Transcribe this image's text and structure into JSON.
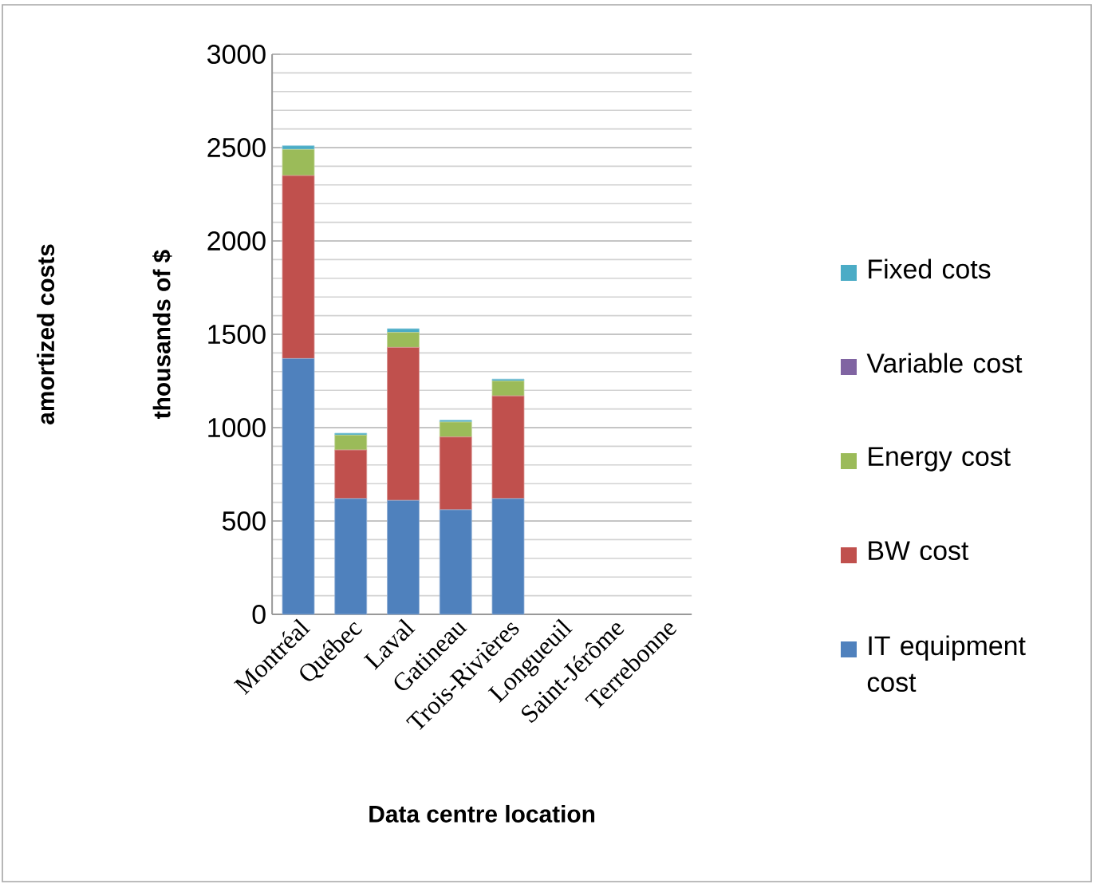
{
  "chart_data": {
    "type": "bar",
    "stacked": true,
    "xlabel": "Data centre location",
    "ylabel": "thousands of $",
    "annotations": [
      "amortized costs"
    ],
    "categories": [
      "Montréal",
      "Québec",
      "Laval",
      "Gatineau",
      "Trois-Rivières",
      "Longueuil",
      "Saint-Jérôme",
      "Terrebonne"
    ],
    "series": [
      {
        "name": "IT equipment cost",
        "color": "#4f81bd",
        "values": [
          1370,
          620,
          610,
          560,
          620,
          null,
          null,
          null
        ]
      },
      {
        "name": "BW cost",
        "color": "#c0504d",
        "values": [
          980,
          260,
          820,
          390,
          550,
          null,
          null,
          null
        ]
      },
      {
        "name": "Energy cost",
        "color": "#9bbb59",
        "values": [
          140,
          80,
          80,
          80,
          80,
          null,
          null,
          null
        ]
      },
      {
        "name": "Variable cost",
        "color": "#8064a2",
        "values": [
          0,
          0,
          0,
          0,
          0,
          null,
          null,
          null
        ]
      },
      {
        "name": "Fixed cots",
        "color": "#4bacc6",
        "values": [
          20,
          10,
          20,
          10,
          10,
          null,
          null,
          null
        ]
      }
    ],
    "ylim": [
      0,
      3000
    ],
    "yticks": [
      0,
      500,
      1000,
      1500,
      2000,
      2500,
      3000
    ],
    "grid": true,
    "legend": "right"
  }
}
